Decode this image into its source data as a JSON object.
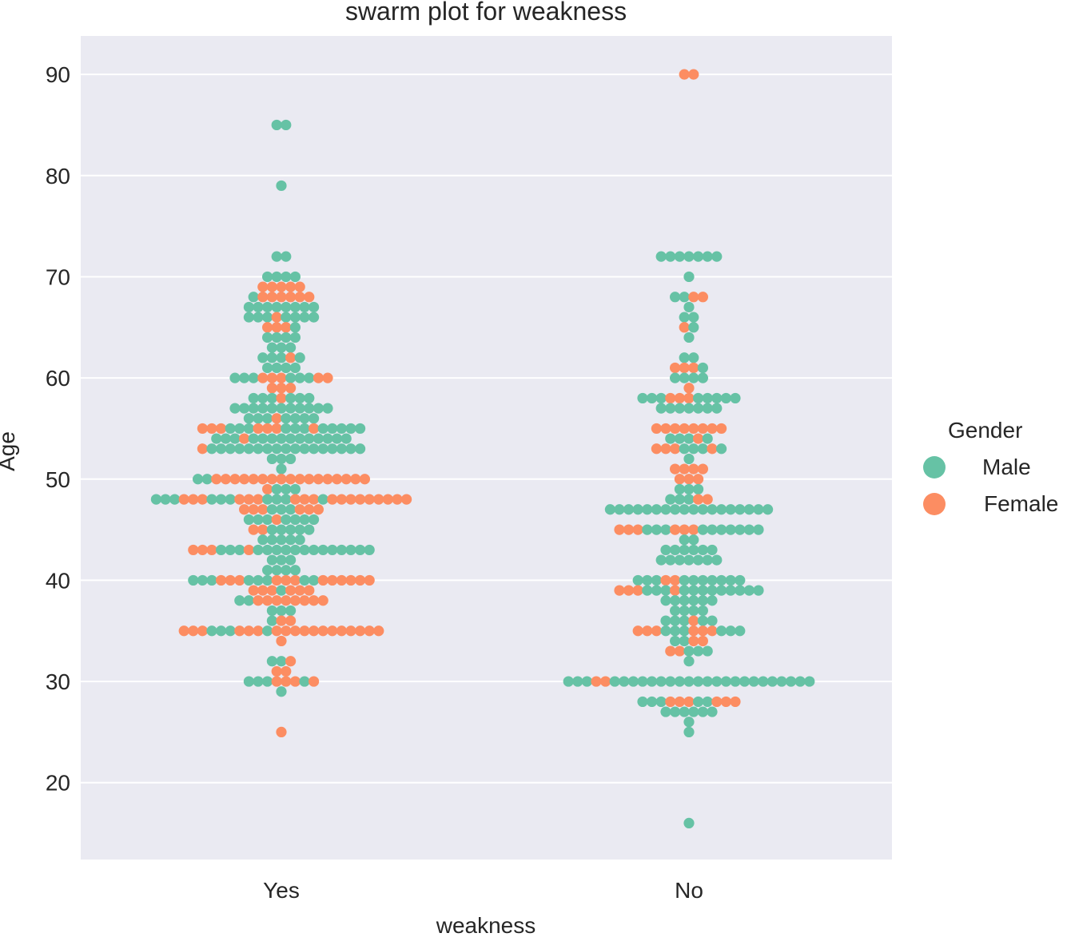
{
  "chart_data": {
    "type": "scatter",
    "subtype": "swarm",
    "title": "swarm plot for weakness",
    "xlabel": "weakness",
    "ylabel": "Age",
    "categories": [
      "Yes",
      "No"
    ],
    "yticks": [
      20,
      30,
      40,
      50,
      60,
      70,
      80,
      90
    ],
    "ylim": [
      12.4,
      93.8
    ],
    "grid": true,
    "legend": {
      "title": "Gender",
      "placement": "right",
      "entries": [
        "Male",
        "Female"
      ]
    },
    "colors": {
      "Male": "#66c2a5",
      "Female": "#fc8d62",
      "background": "#eaeaf2",
      "grid": "#ffffff"
    },
    "row_format": [
      "age",
      "male_count",
      "female_count"
    ],
    "points": {
      "Yes": [
        [
          85,
          2,
          0
        ],
        [
          79,
          1,
          0
        ],
        [
          72,
          2,
          0
        ],
        [
          70,
          4,
          0
        ],
        [
          69,
          0,
          5
        ],
        [
          68,
          1,
          6
        ],
        [
          67,
          8,
          0
        ],
        [
          66,
          7,
          1
        ],
        [
          65,
          1,
          3
        ],
        [
          64,
          4,
          0
        ],
        [
          63,
          3,
          0
        ],
        [
          62,
          4,
          1
        ],
        [
          61,
          4,
          0
        ],
        [
          60,
          6,
          5
        ],
        [
          59,
          0,
          3
        ],
        [
          58,
          6,
          1
        ],
        [
          57,
          11,
          0
        ],
        [
          56,
          7,
          1
        ],
        [
          55,
          11,
          7
        ],
        [
          54,
          14,
          1
        ],
        [
          53,
          17,
          1
        ],
        [
          52,
          3,
          0
        ],
        [
          51,
          1,
          0
        ],
        [
          50,
          2,
          17
        ],
        [
          49,
          3,
          1
        ],
        [
          48,
          10,
          18
        ],
        [
          47,
          3,
          6
        ],
        [
          46,
          7,
          1
        ],
        [
          45,
          5,
          2
        ],
        [
          44,
          5,
          0
        ],
        [
          43,
          16,
          4
        ],
        [
          42,
          3,
          0
        ],
        [
          41,
          4,
          0
        ],
        [
          40,
          8,
          12
        ],
        [
          39,
          1,
          6
        ],
        [
          38,
          2,
          8
        ],
        [
          37,
          3,
          0
        ],
        [
          36,
          1,
          2
        ],
        [
          35,
          4,
          18
        ],
        [
          34,
          0,
          1
        ],
        [
          32,
          2,
          1
        ],
        [
          31,
          0,
          2
        ],
        [
          30,
          4,
          4
        ],
        [
          29,
          1,
          0
        ],
        [
          25,
          0,
          1
        ]
      ],
      "No": [
        [
          90,
          0,
          2
        ],
        [
          72,
          7,
          0
        ],
        [
          70,
          1,
          0
        ],
        [
          68,
          2,
          2
        ],
        [
          67,
          1,
          0
        ],
        [
          66,
          2,
          0
        ],
        [
          65,
          1,
          1
        ],
        [
          64,
          1,
          0
        ],
        [
          62,
          2,
          0
        ],
        [
          61,
          1,
          3
        ],
        [
          60,
          4,
          0
        ],
        [
          59,
          0,
          1
        ],
        [
          58,
          8,
          3
        ],
        [
          57,
          7,
          0
        ],
        [
          55,
          0,
          8
        ],
        [
          54,
          4,
          1
        ],
        [
          53,
          4,
          4
        ],
        [
          52,
          1,
          0
        ],
        [
          51,
          0,
          4
        ],
        [
          50,
          0,
          3
        ],
        [
          49,
          3,
          0
        ],
        [
          48,
          3,
          2
        ],
        [
          47,
          18,
          0
        ],
        [
          45,
          10,
          6
        ],
        [
          44,
          2,
          0
        ],
        [
          43,
          6,
          0
        ],
        [
          42,
          7,
          0
        ],
        [
          40,
          10,
          2
        ],
        [
          39,
          12,
          4
        ],
        [
          38,
          6,
          0
        ],
        [
          37,
          4,
          0
        ],
        [
          36,
          5,
          1
        ],
        [
          35,
          6,
          6
        ],
        [
          34,
          2,
          2
        ],
        [
          33,
          3,
          2
        ],
        [
          32,
          1,
          0
        ],
        [
          30,
          25,
          2
        ],
        [
          28,
          5,
          6
        ],
        [
          27,
          6,
          0
        ],
        [
          26,
          1,
          0
        ],
        [
          25,
          1,
          0
        ],
        [
          16,
          1,
          0
        ]
      ]
    }
  }
}
